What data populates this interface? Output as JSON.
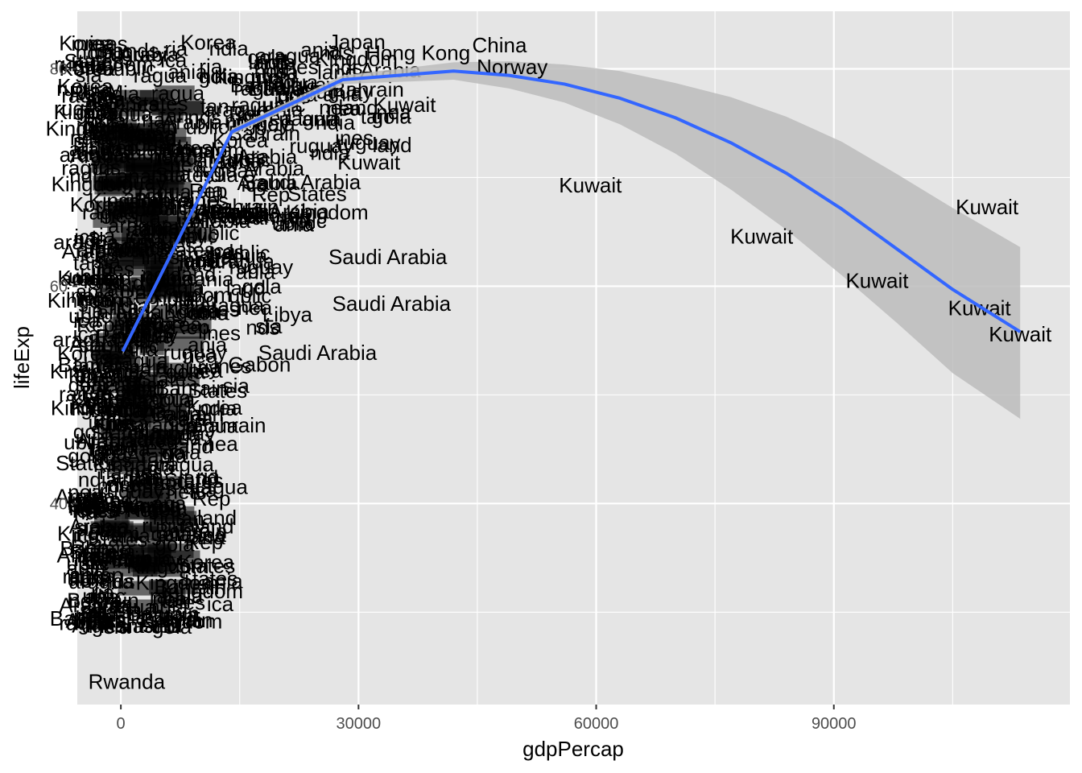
{
  "chart_data": {
    "type": "scatter",
    "title": "",
    "xlabel": "gdpPercap",
    "ylabel": "lifeExp",
    "xlim": [
      -5500,
      119800
    ],
    "ylim": [
      21.5,
      85.3
    ],
    "x_ticks": [
      0,
      30000,
      60000,
      90000
    ],
    "x_tick_labels": [
      "0",
      "30000",
      "60000",
      "90000"
    ],
    "y_ticks": [
      40,
      60,
      80
    ],
    "y_tick_labels": [
      "40",
      "60",
      "80"
    ],
    "grid": true,
    "legend": "none",
    "colors": {
      "panel": "#e5e5e5",
      "grid": "#ffffff",
      "smooth_line": "#3366ff",
      "ribbon": "#bcbcbc",
      "text": "#000000",
      "tick_text": "#4d4d4d"
    },
    "points": [
      {
        "label": "Kuwait",
        "x": 113523,
        "y": 55.6
      },
      {
        "label": "Kuwait",
        "x": 108382,
        "y": 58.0
      },
      {
        "label": "Kuwait",
        "x": 109348,
        "y": 67.3
      },
      {
        "label": "Kuwait",
        "x": 95458,
        "y": 60.5
      },
      {
        "label": "Kuwait",
        "x": 80895,
        "y": 64.6
      },
      {
        "label": "Kuwait",
        "x": 59265,
        "y": 69.3
      },
      {
        "label": "Saudi Arabia",
        "x": 33693,
        "y": 62.7
      },
      {
        "label": "Saudi Arabia",
        "x": 34168,
        "y": 58.4
      },
      {
        "label": "Saudi Arabia",
        "x": 24837,
        "y": 53.9
      },
      {
        "label": "Saudi Arabia",
        "x": 22800,
        "y": 69.6
      },
      {
        "label": "Saudi Arabia",
        "x": 18800,
        "y": 66.9
      },
      {
        "label": "Libya",
        "x": 21011,
        "y": 57.4
      },
      {
        "label": "Gabon",
        "x": 17500,
        "y": 52.8
      },
      {
        "label": "China",
        "x": 47800,
        "y": 82.2
      },
      {
        "label": "Norway",
        "x": 49400,
        "y": 80.2
      },
      {
        "label": "Hong Kong",
        "x": 37500,
        "y": 81.5
      },
      {
        "label": "Japan",
        "x": 29800,
        "y": 82.5
      },
      {
        "label": "Kuwait",
        "x": 35800,
        "y": 76.7
      },
      {
        "label": "Kuwait",
        "x": 31300,
        "y": 71.4
      },
      {
        "label": "Rwanda",
        "x": 737,
        "y": 23.6
      },
      {
        "label": "Afghanistan",
        "x": 786,
        "y": 28.8
      }
    ],
    "smooth_curve": {
      "x": [
        241,
        14000,
        28000,
        42000,
        49000,
        56000,
        63000,
        70000,
        77000,
        84000,
        91000,
        98000,
        105000,
        113523
      ],
      "y": [
        54.0,
        74.2,
        79.0,
        79.8,
        79.4,
        78.6,
        77.3,
        75.5,
        73.2,
        70.4,
        67.1,
        63.4,
        59.7,
        55.8
      ],
      "lower": [
        53.7,
        73.9,
        78.6,
        79.0,
        78.2,
        76.9,
        74.9,
        72.2,
        68.9,
        65.2,
        61.0,
        56.6,
        52.0,
        47.8
      ],
      "upper": [
        54.3,
        74.5,
        79.4,
        80.6,
        80.7,
        80.4,
        79.8,
        78.7,
        77.4,
        75.6,
        73.3,
        70.3,
        67.2,
        63.6
      ]
    }
  }
}
